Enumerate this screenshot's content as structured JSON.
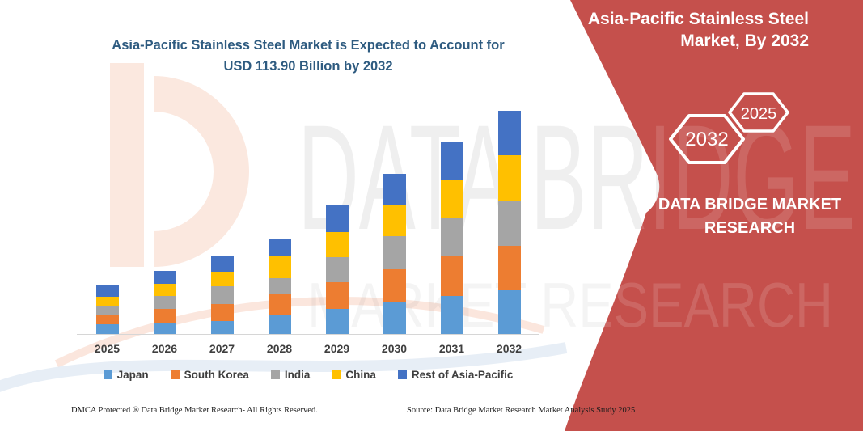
{
  "main": {
    "title": "Asia-Pacific Stainless Steel Market is Expected to Account for USD 113.90 Billion by 2032",
    "title_lines": [
      "Asia-Pacific Stainless Steel Market is Expected to Account for",
      "USD 113.90 Billion by 2032"
    ],
    "title_color": "#2e5b80"
  },
  "banner": {
    "color": "#c5504c",
    "title_lines": [
      "Asia-Pacific Stainless Steel",
      "Market, By 2032"
    ],
    "hexagon_large_label": "2032",
    "hexagon_small_label": "2025",
    "brand_lines": [
      "DATA BRIDGE MARKET",
      "RESEARCH"
    ]
  },
  "watermark": {
    "line1": "DATA BRIDGE",
    "line2": "MARKET RESEARCH"
  },
  "footer": {
    "left": "DMCA Protected ® Data Bridge Market Research-  All Rights Reserved.",
    "right": "Source: Data Bridge Market Research  Market Analysis Study 2025"
  },
  "chart_data": {
    "type": "bar",
    "stacked": true,
    "title": "Asia-Pacific Stainless Steel Market is Expected to Account for USD 113.90 Billion by 2032",
    "unit": "USD billion (values estimated from bar heights; 2032 total = 113.90 stated)",
    "categories": [
      "2025",
      "2026",
      "2027",
      "2028",
      "2029",
      "2030",
      "2031",
      "2032"
    ],
    "series": [
      {
        "name": "Japan",
        "color": "#5b9bd5",
        "values": [
          4.8,
          6.0,
          6.5,
          9.6,
          12.7,
          16.5,
          19.4,
          22.3
        ]
      },
      {
        "name": "South Korea",
        "color": "#ed7d31",
        "values": [
          4.8,
          6.7,
          8.7,
          10.7,
          13.6,
          16.5,
          20.6,
          22.7
        ]
      },
      {
        "name": "India",
        "color": "#a5a5a5",
        "values": [
          4.8,
          6.6,
          9.2,
          8.3,
          12.8,
          16.9,
          19.0,
          23.1
        ]
      },
      {
        "name": "China",
        "color": "#ffc000",
        "values": [
          4.8,
          6.5,
          7.6,
          11.1,
          12.8,
          16.1,
          19.4,
          23.1
        ]
      },
      {
        "name": "Rest of Asia-Pacific",
        "color": "#4472c4",
        "values": [
          5.5,
          6.5,
          8.0,
          9.1,
          14.0,
          15.7,
          19.8,
          22.7
        ]
      }
    ],
    "totals_estimated": [
      24.7,
      32.3,
      40.0,
      48.8,
      65.9,
      81.7,
      98.2,
      113.9
    ],
    "xlabel": "",
    "ylabel": "",
    "ylim": [
      0,
      120
    ],
    "gridlines": false,
    "y_axis_visible": false,
    "legend_position": "bottom"
  }
}
